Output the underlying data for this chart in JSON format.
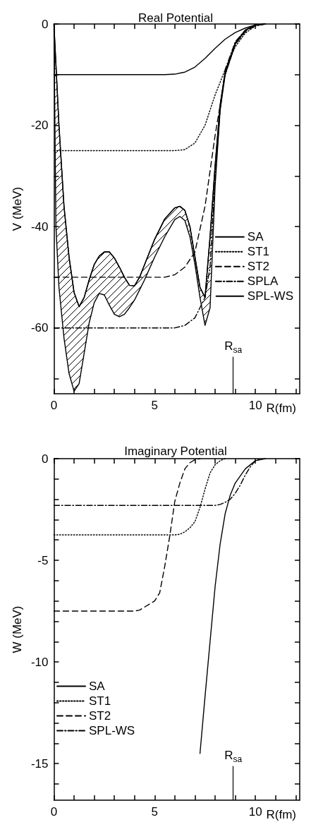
{
  "chart_data": [
    {
      "type": "line",
      "title": "Real Potential",
      "xlabel": "R(fm)",
      "ylabel": "V (MeV)",
      "xlim": [
        0,
        12.2
      ],
      "ylim": [
        -73,
        0
      ],
      "xticks": [
        0,
        {
          "value": 1,
          "label": null
        },
        {
          "value": 2,
          "label": null
        },
        {
          "value": 3,
          "label": null
        },
        {
          "value": 4,
          "label": null
        },
        5,
        {
          "value": 6,
          "label": null
        },
        {
          "value": 7,
          "label": null
        },
        {
          "value": 8,
          "label": null
        },
        {
          "value": 9,
          "label": null
        },
        10,
        {
          "value": 11,
          "label": null
        },
        {
          "value": 12,
          "label": null
        }
      ],
      "yticks": [
        0,
        {
          "value": -10,
          "label": null
        },
        -20,
        {
          "value": -30,
          "label": null
        },
        -40,
        {
          "value": -50,
          "label": null
        },
        -60,
        {
          "value": -70,
          "label": null
        }
      ],
      "grid": false,
      "legend": "right",
      "ref_lines": [
        {
          "axis": "x",
          "value": 8.9,
          "label": "R$_{sa}$"
        }
      ],
      "series": [
        {
          "name": "SA",
          "color": "#000000",
          "line_style": "solid",
          "x": [
            0,
            1,
            2,
            3,
            4,
            5,
            5.5,
            6,
            6.5,
            7,
            7.5,
            8,
            8.5,
            9,
            9.5,
            10,
            10.5
          ],
          "values": [
            -10,
            -10,
            -10,
            -10,
            -10,
            -10,
            -10,
            -9.9,
            -9.5,
            -8.5,
            -6.8,
            -4.8,
            -3,
            -1.7,
            -0.8,
            -0.2,
            0
          ]
        },
        {
          "name": "ST1",
          "color": "#000000",
          "line_style": "dotted",
          "x": [
            0,
            1,
            2,
            3,
            4,
            5,
            6,
            6.5,
            7,
            7.5,
            8,
            8.5,
            9,
            9.5,
            10,
            10.5
          ],
          "values": [
            -25,
            -25,
            -25,
            -25,
            -25,
            -25,
            -25,
            -24.8,
            -23.5,
            -20,
            -14,
            -9,
            -4.5,
            -1.8,
            -0.4,
            0
          ]
        },
        {
          "name": "ST2",
          "color": "#000000",
          "line_style": "dashed",
          "x": [
            0,
            1,
            2,
            3,
            4,
            5,
            5.5,
            6,
            6.5,
            7,
            7.5,
            8,
            8.5,
            9,
            9.5,
            10,
            10.5
          ],
          "values": [
            -50,
            -50,
            -50,
            -50,
            -50,
            -50,
            -50,
            -49.5,
            -48,
            -45,
            -36,
            -22,
            -10,
            -4,
            -1.5,
            -0.3,
            0
          ]
        },
        {
          "name": "SPLA",
          "color": "#000000",
          "line_style": "dashdot",
          "x": [
            0,
            1,
            2,
            3,
            4,
            5,
            6,
            6.5,
            7,
            7.5,
            7.75,
            8,
            8.25,
            8.5,
            9,
            9.5,
            10,
            10.5
          ],
          "values": [
            -60,
            -60,
            -60,
            -60,
            -60,
            -60,
            -60,
            -59.5,
            -58,
            -54,
            -48,
            -30,
            -17,
            -9,
            -3.5,
            -1.2,
            -0.2,
            0
          ]
        },
        {
          "name": "SPL-WS",
          "color": "#000000",
          "x": [
            0,
            0.1,
            0.25,
            0.5,
            0.75,
            1,
            1.25,
            1.5,
            1.75,
            2,
            2.25,
            2.5,
            2.75,
            3,
            3.25,
            3.5,
            3.75,
            4,
            4.25,
            4.5,
            5,
            5.5,
            6,
            6.25,
            6.5,
            6.75,
            7,
            7.25,
            7.5,
            7.75,
            8,
            8.25,
            8.5,
            9,
            9.5,
            10,
            10.5
          ],
          "lower": [
            0,
            -40,
            -52,
            -62,
            -69,
            -72.5,
            -71,
            -65,
            -59,
            -55,
            -53.2,
            -53.5,
            -55.5,
            -57.3,
            -57.8,
            -57.3,
            -56,
            -54.5,
            -52.5,
            -50.5,
            -46,
            -42,
            -38.6,
            -38,
            -38.8,
            -42,
            -47.5,
            -54,
            -59.5,
            -56,
            -32,
            -17,
            -10,
            -4,
            -1.3,
            -0.2,
            0
          ],
          "values": [
            0,
            -8,
            -20,
            -36,
            -46,
            -53,
            -55.8,
            -54,
            -50.5,
            -47.5,
            -45.8,
            -45,
            -45,
            -46.2,
            -48,
            -50,
            -51.6,
            -51.7,
            -50,
            -47.5,
            -42.5,
            -38.5,
            -36.3,
            -36,
            -36.8,
            -40,
            -46,
            -52,
            -54,
            -42,
            -28,
            -16,
            -9.5,
            -3.8,
            -1.2,
            -0.2,
            0
          ],
          "upper": [
            0,
            -8,
            -20,
            -36,
            -46,
            -53,
            -55.8,
            -54,
            -50.5,
            -47.5,
            -45.8,
            -45,
            -45,
            -46.2,
            -48,
            -50,
            -51.6,
            -51.7,
            -50,
            -47.5,
            -42.5,
            -38.5,
            -36.3,
            -36,
            -36.8,
            -40,
            -46,
            -52,
            -54,
            -42,
            -28,
            -16,
            -9.5,
            -3.8,
            -1.2,
            -0.2,
            0
          ]
        }
      ]
    },
    {
      "type": "line",
      "title": "Imaginary Potential",
      "xlabel": "R(fm)",
      "ylabel": "W (MeV)",
      "xlim": [
        0,
        12.2
      ],
      "ylim": [
        -16.8,
        0
      ],
      "xticks": [
        0,
        {
          "value": 1,
          "label": null
        },
        {
          "value": 2,
          "label": null
        },
        {
          "value": 3,
          "label": null
        },
        {
          "value": 4,
          "label": null
        },
        5,
        {
          "value": 6,
          "label": null
        },
        {
          "value": 7,
          "label": null
        },
        {
          "value": 8,
          "label": null
        },
        {
          "value": 9,
          "label": null
        },
        10,
        {
          "value": 11,
          "label": null
        },
        {
          "value": 12,
          "label": null
        }
      ],
      "yticks": [
        0,
        {
          "value": -1,
          "label": null
        },
        {
          "value": -2,
          "label": null
        },
        {
          "value": -3,
          "label": null
        },
        {
          "value": -4,
          "label": null
        },
        -5,
        {
          "value": -6,
          "label": null
        },
        {
          "value": -7,
          "label": null
        },
        {
          "value": -8,
          "label": null
        },
        {
          "value": -9,
          "label": null
        },
        -10,
        {
          "value": -11,
          "label": null
        },
        {
          "value": -12,
          "label": null
        },
        {
          "value": -13,
          "label": null
        },
        {
          "value": -14,
          "label": null
        },
        -15,
        {
          "value": -16,
          "label": null
        }
      ],
      "grid": false,
      "legend": "bottom left",
      "ref_lines": [
        {
          "axis": "x",
          "value": 8.9,
          "label": "R$_{sa}$"
        }
      ],
      "series": [
        {
          "name": "SA",
          "color": "#000000",
          "line_style": "solid",
          "x": [
            7.25,
            7.5,
            7.75,
            8,
            8.25,
            8.5,
            8.75,
            9,
            9.5,
            10,
            10.5
          ],
          "values": [
            -14.5,
            -11.7,
            -9,
            -6.3,
            -4.2,
            -2.7,
            -1.8,
            -1.2,
            -0.5,
            -0.1,
            0
          ]
        },
        {
          "name": "ST1",
          "color": "#000000",
          "line_style": "dotted",
          "x": [
            0,
            1,
            2,
            3,
            4,
            5,
            6,
            6.25,
            6.5,
            6.75,
            7,
            7.25,
            7.5,
            7.75,
            8,
            8.25,
            8.5
          ],
          "values": [
            -3.75,
            -3.75,
            -3.75,
            -3.75,
            -3.75,
            -3.75,
            -3.75,
            -3.72,
            -3.6,
            -3.4,
            -3.1,
            -2.4,
            -1.5,
            -0.7,
            -0.3,
            -0.1,
            0
          ]
        },
        {
          "name": "ST2",
          "color": "#000000",
          "line_style": "dashed",
          "x": [
            0,
            1,
            2,
            3,
            4,
            4.25,
            4.5,
            4.75,
            5,
            5.25,
            5.5,
            5.75,
            6,
            6.25,
            6.5,
            6.75,
            7,
            7.25
          ],
          "values": [
            -7.5,
            -7.5,
            -7.5,
            -7.5,
            -7.5,
            -7.45,
            -7.3,
            -7.15,
            -7,
            -6.6,
            -5.3,
            -3.8,
            -2.1,
            -1.2,
            -0.5,
            -0.2,
            -0.05,
            0
          ]
        },
        {
          "name": "SPL-WS",
          "color": "#000000",
          "line_style": "dashdot",
          "x": [
            0,
            1,
            2,
            3,
            4,
            5,
            6,
            7,
            8,
            8.25,
            8.5,
            8.75,
            9,
            9.25,
            9.5,
            9.75,
            10,
            10.25
          ],
          "values": [
            -2.3,
            -2.3,
            -2.3,
            -2.3,
            -2.3,
            -2.3,
            -2.3,
            -2.3,
            -2.3,
            -2.25,
            -2.15,
            -2,
            -1.7,
            -1.3,
            -0.8,
            -0.4,
            -0.1,
            0
          ]
        }
      ]
    }
  ]
}
